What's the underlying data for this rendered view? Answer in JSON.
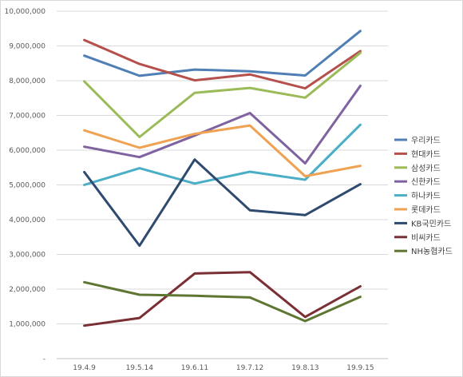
{
  "chart_data": {
    "type": "line",
    "categories": [
      "19.4.9",
      "19.5.14",
      "19.6.11",
      "19.7.12",
      "19.8.13",
      "19.9.15"
    ],
    "ylim": [
      0,
      10000000
    ],
    "yticks": [
      "-",
      "1,000,000",
      "2,000,000",
      "3,000,000",
      "4,000,000",
      "5,000,000",
      "6,000,000",
      "7,000,000",
      "8,000,000",
      "9,000,000",
      "10,000,000"
    ],
    "grid": true,
    "legend_position": "right",
    "series": [
      {
        "name": "우리카드",
        "color": "#4f7fb4",
        "values": [
          8720000,
          8140000,
          8320000,
          8270000,
          8150000,
          9430000
        ]
      },
      {
        "name": "현대카드",
        "color": "#b5504d",
        "values": [
          9170000,
          8480000,
          8010000,
          8180000,
          7780000,
          8850000
        ]
      },
      {
        "name": "삼성카드",
        "color": "#9bbb59",
        "values": [
          7980000,
          6380000,
          7650000,
          7790000,
          7510000,
          8800000
        ]
      },
      {
        "name": "신한카드",
        "color": "#7f63a1",
        "values": [
          6100000,
          5800000,
          6420000,
          7070000,
          5620000,
          7850000
        ]
      },
      {
        "name": "하나카드",
        "color": "#4aaec6",
        "values": [
          5000000,
          5480000,
          5040000,
          5380000,
          5150000,
          6730000
        ]
      },
      {
        "name": "롯데카드",
        "color": "#f0a253",
        "values": [
          6570000,
          6070000,
          6470000,
          6710000,
          5250000,
          5550000
        ]
      },
      {
        "name": "KB국민카드",
        "color": "#2e4a6e",
        "values": [
          5370000,
          3250000,
          5730000,
          4270000,
          4130000,
          5020000
        ]
      },
      {
        "name": "비씨카드",
        "color": "#7a2f34",
        "values": [
          950000,
          1170000,
          2450000,
          2490000,
          1200000,
          2080000
        ]
      },
      {
        "name": "NH농협카드",
        "color": "#5f7633",
        "values": [
          2200000,
          1840000,
          1810000,
          1760000,
          1080000,
          1780000
        ]
      }
    ]
  }
}
